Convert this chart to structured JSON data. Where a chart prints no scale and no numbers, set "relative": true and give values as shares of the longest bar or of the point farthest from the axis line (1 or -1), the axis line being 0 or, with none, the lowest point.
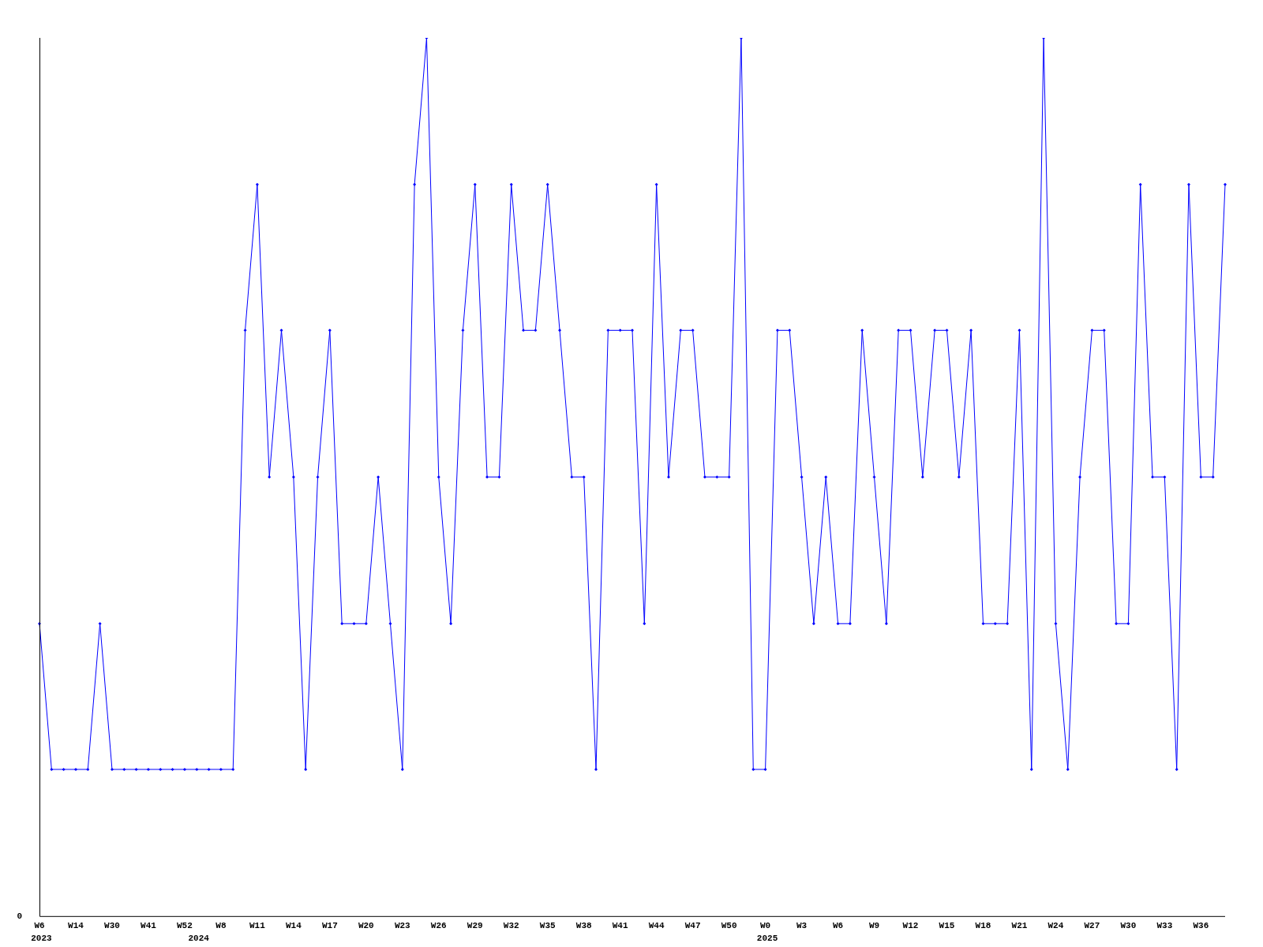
{
  "chart_data": {
    "type": "line",
    "relative": true,
    "marker": "diamond",
    "line_style": "solid",
    "grid": false,
    "legend": false,
    "categories": [
      "W6",
      null,
      null,
      "W14",
      null,
      null,
      "W30",
      null,
      null,
      "W41",
      null,
      null,
      "W52",
      null,
      null,
      "W8",
      null,
      null,
      "W11",
      null,
      null,
      "W14",
      null,
      null,
      "W17",
      null,
      null,
      "W20",
      null,
      null,
      "W23",
      null,
      null,
      "W26",
      null,
      null,
      "W29",
      null,
      null,
      "W32",
      null,
      null,
      "W35",
      null,
      null,
      "W38",
      null,
      null,
      "W41",
      null,
      null,
      "W44",
      null,
      null,
      "W47",
      null,
      null,
      "W50",
      null,
      null,
      "W0",
      null,
      null,
      "W3",
      null,
      null,
      "W6",
      null,
      null,
      "W9",
      null,
      null,
      "W12",
      null,
      null,
      "W15",
      null,
      null,
      "W18",
      null,
      null,
      "W21",
      null,
      null,
      "W24",
      null,
      null,
      "W27",
      null,
      null,
      "W30",
      null,
      null,
      "W33",
      null,
      null,
      "W36",
      null,
      null
    ],
    "series": [
      {
        "color": "#0000ff",
        "values": [
          0.333,
          0.167,
          0.167,
          0.167,
          0.167,
          0.333,
          0.167,
          0.167,
          0.167,
          0.167,
          0.167,
          0.167,
          0.167,
          0.167,
          0.167,
          0.167,
          0.167,
          0.667,
          0.833,
          0.5,
          0.667,
          0.5,
          0.167,
          0.5,
          0.667,
          0.333,
          0.333,
          0.333,
          0.5,
          0.333,
          0.167,
          0.833,
          1,
          0.5,
          0.333,
          0.667,
          0.833,
          0.5,
          0.5,
          0.833,
          0.667,
          0.667,
          0.833,
          0.667,
          0.5,
          0.5,
          0.167,
          0.667,
          0.667,
          0.667,
          0.333,
          0.833,
          0.5,
          0.667,
          0.667,
          0.5,
          0.5,
          0.5,
          1,
          0.167,
          0.167,
          0.667,
          0.667,
          0.5,
          0.333,
          0.5,
          0.333,
          0.333,
          0.667,
          0.5,
          0.333,
          0.667,
          0.667,
          0.5,
          0.667,
          0.667,
          0.5,
          0.667,
          0.333,
          0.333,
          0.333,
          0.667,
          0.167,
          1,
          0.333,
          0.167,
          0.5,
          0.667,
          0.667,
          0.333,
          0.333,
          0.833,
          0.5,
          0.5,
          0.167,
          0.833,
          0.5,
          0.5,
          0.833
        ]
      }
    ],
    "annotations": [
      "0",
      "2023",
      "2024",
      "2025"
    ]
  }
}
